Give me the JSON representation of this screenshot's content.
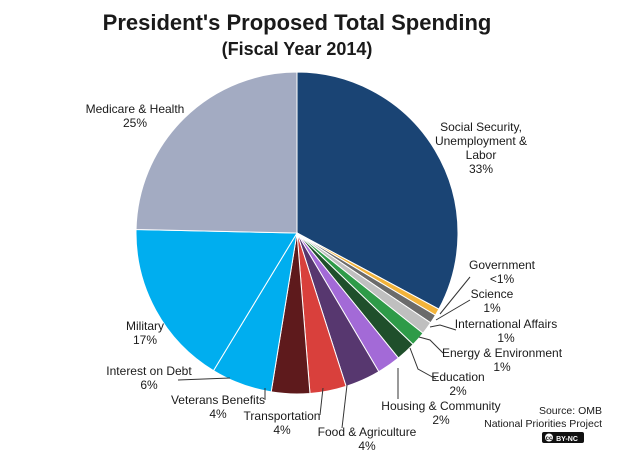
{
  "chart_data": {
    "type": "pie",
    "title": "President's Proposed Total Spending",
    "subtitle": "(Fiscal Year 2014)",
    "slices": [
      {
        "label": "Social Security, Unemployment & Labor",
        "display_lines": [
          "Social Security,",
          "Unemployment &",
          "Labor"
        ],
        "percent_label": "33%",
        "value": 33.3,
        "color": "#1a4474"
      },
      {
        "label": "Government",
        "display_lines": [
          "Government"
        ],
        "percent_label": "<1%",
        "value": 0.7,
        "color": "#f2b33a"
      },
      {
        "label": "Science",
        "display_lines": [
          "Science"
        ],
        "percent_label": "1%",
        "value": 0.9,
        "color": "#6b6b6b"
      },
      {
        "label": "International Affairs",
        "display_lines": [
          "International Affairs"
        ],
        "percent_label": "1%",
        "value": 1.3,
        "color": "#bfbfbf"
      },
      {
        "label": "Energy & Environment",
        "display_lines": [
          "Energy & Environment"
        ],
        "percent_label": "1%",
        "value": 1.5,
        "color": "#2e9b48"
      },
      {
        "label": "Education",
        "display_lines": [
          "Education"
        ],
        "percent_label": "2%",
        "value": 2.0,
        "color": "#1f4f2b"
      },
      {
        "label": "Housing & Community",
        "display_lines": [
          "Housing & Community"
        ],
        "percent_label": "2%",
        "value": 2.4,
        "color": "#a36ad7"
      },
      {
        "label": "Food & Agriculture",
        "display_lines": [
          "Food & Agriculture"
        ],
        "percent_label": "4%",
        "value": 3.6,
        "color": "#57376f"
      },
      {
        "label": "Transportation",
        "display_lines": [
          "Transportation"
        ],
        "percent_label": "4%",
        "value": 3.7,
        "color": "#d9403c"
      },
      {
        "label": "Veterans Benefits",
        "display_lines": [
          "Veterans Benefits"
        ],
        "percent_label": "4%",
        "value": 3.9,
        "color": "#5e1a1c"
      },
      {
        "label": "Interest on Debt",
        "display_lines": [
          "Interest on Debt"
        ],
        "percent_label": "6%",
        "value": 6.2,
        "color": "#00aeef"
      },
      {
        "label": "Military",
        "display_lines": [
          "Military"
        ],
        "percent_label": "17%",
        "value": 16.9,
        "color": "#00aeef"
      },
      {
        "label": "Medicare & Health",
        "display_lines": [
          "Medicare & Health"
        ],
        "percent_label": "25%",
        "value": 25.0,
        "color": "#a3abc2"
      }
    ],
    "source_lines": [
      "Source: OMB",
      "National Priorities Project"
    ],
    "license_badge": "BY-NC"
  }
}
